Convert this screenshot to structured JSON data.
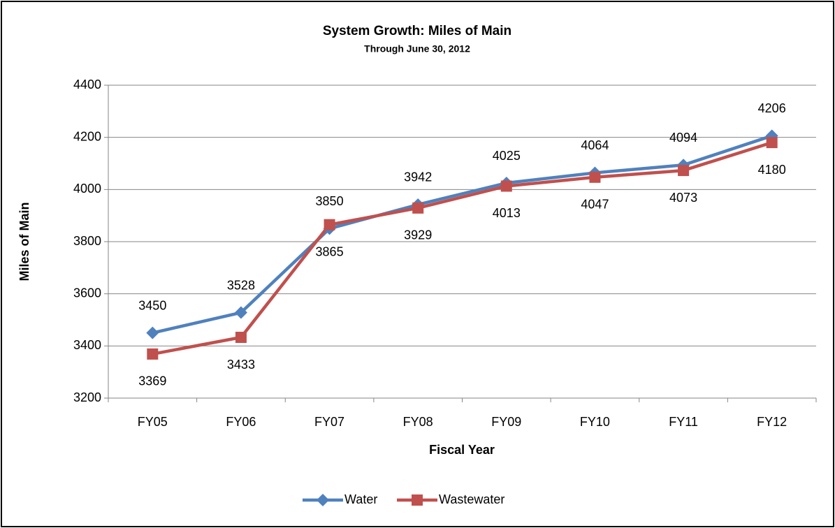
{
  "chart_data": {
    "type": "line",
    "title": "System Growth: Miles of Main",
    "subtitle": "Through June 30, 2012",
    "x_label": "Fiscal Year",
    "y_label": "Miles of Main",
    "categories": [
      "FY05",
      "FY06",
      "FY07",
      "FY08",
      "FY09",
      "FY10",
      "FY11",
      "FY12"
    ],
    "series": [
      {
        "name": "Water",
        "color": "#4f81bd",
        "marker": "diamond",
        "values": [
          3450,
          3528,
          3850,
          3942,
          4025,
          4064,
          4094,
          4206
        ]
      },
      {
        "name": "Wastewater",
        "color": "#c0504d",
        "marker": "square",
        "values": [
          3369,
          3433,
          3865,
          3929,
          4013,
          4047,
          4073,
          4180
        ]
      }
    ],
    "ylim": [
      3200,
      4400
    ],
    "yticks": [
      3200,
      3400,
      3600,
      3800,
      4000,
      4200,
      4400
    ],
    "grid": true,
    "legend": "bottom"
  }
}
